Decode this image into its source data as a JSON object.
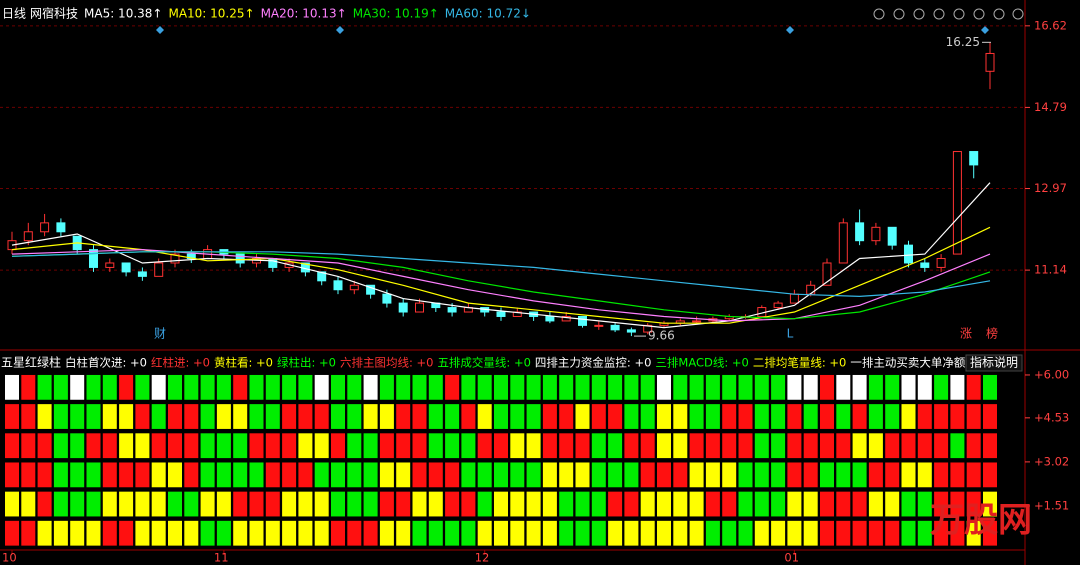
{
  "header": {
    "period": "日线",
    "stock": "网宿科技"
  },
  "chart_data": [
    {
      "type": "candlestick",
      "ohlc": [
        [
          11.6,
          12.0,
          11.5,
          11.8
        ],
        [
          11.8,
          12.2,
          11.7,
          12.0
        ],
        [
          12.0,
          12.4,
          11.9,
          12.2
        ],
        [
          12.2,
          12.3,
          11.9,
          12.0
        ],
        [
          11.9,
          11.9,
          11.5,
          11.6
        ],
        [
          11.6,
          11.7,
          11.1,
          11.2
        ],
        [
          11.2,
          11.4,
          11.1,
          11.3
        ],
        [
          11.3,
          11.3,
          11.0,
          11.1
        ],
        [
          11.1,
          11.2,
          10.9,
          11.0
        ],
        [
          11.0,
          11.4,
          11.0,
          11.3
        ],
        [
          11.3,
          11.6,
          11.2,
          11.5
        ],
        [
          11.5,
          11.6,
          11.3,
          11.4
        ],
        [
          11.4,
          11.7,
          11.4,
          11.6
        ],
        [
          11.6,
          11.6,
          11.4,
          11.5
        ],
        [
          11.5,
          11.5,
          11.2,
          11.3
        ],
        [
          11.3,
          11.5,
          11.2,
          11.4
        ],
        [
          11.4,
          11.4,
          11.1,
          11.2
        ],
        [
          11.2,
          11.4,
          11.1,
          11.3
        ],
        [
          11.3,
          11.3,
          11.0,
          11.1
        ],
        [
          11.1,
          11.1,
          10.8,
          10.9
        ],
        [
          10.9,
          11.0,
          10.6,
          10.7
        ],
        [
          10.7,
          10.9,
          10.6,
          10.8
        ],
        [
          10.8,
          10.8,
          10.5,
          10.6
        ],
        [
          10.6,
          10.7,
          10.3,
          10.4
        ],
        [
          10.4,
          10.5,
          10.1,
          10.2
        ],
        [
          10.2,
          10.5,
          10.2,
          10.4
        ],
        [
          10.4,
          10.4,
          10.2,
          10.3
        ],
        [
          10.3,
          10.4,
          10.1,
          10.2
        ],
        [
          10.2,
          10.4,
          10.2,
          10.3
        ],
        [
          10.3,
          10.3,
          10.1,
          10.2
        ],
        [
          10.2,
          10.3,
          10.0,
          10.1
        ],
        [
          10.1,
          10.3,
          10.1,
          10.2
        ],
        [
          10.2,
          10.2,
          10.0,
          10.1
        ],
        [
          10.1,
          10.2,
          9.95,
          10.0
        ],
        [
          10.0,
          10.2,
          10.0,
          10.1
        ],
        [
          10.1,
          10.1,
          9.85,
          9.9
        ],
        [
          9.9,
          10.0,
          9.8,
          9.9
        ],
        [
          9.9,
          9.95,
          9.75,
          9.8
        ],
        [
          9.8,
          9.85,
          9.66,
          9.75
        ],
        [
          9.75,
          9.95,
          9.7,
          9.9
        ],
        [
          9.9,
          10.0,
          9.85,
          9.95
        ],
        [
          9.95,
          10.05,
          9.9,
          10.0
        ],
        [
          10.0,
          10.1,
          9.95,
          10.0
        ],
        [
          10.0,
          10.1,
          9.95,
          10.05
        ],
        [
          10.05,
          10.15,
          10.0,
          10.1
        ],
        [
          10.1,
          10.15,
          10.05,
          10.1
        ],
        [
          10.1,
          10.35,
          10.1,
          10.3
        ],
        [
          10.3,
          10.45,
          10.25,
          10.4
        ],
        [
          10.4,
          10.7,
          10.4,
          10.6
        ],
        [
          10.6,
          10.9,
          10.55,
          10.8
        ],
        [
          10.8,
          11.4,
          10.8,
          11.3
        ],
        [
          11.3,
          12.3,
          11.3,
          12.2
        ],
        [
          12.2,
          12.5,
          11.7,
          11.8
        ],
        [
          11.8,
          12.2,
          11.7,
          12.1
        ],
        [
          12.1,
          12.1,
          11.6,
          11.7
        ],
        [
          11.7,
          11.8,
          11.2,
          11.3
        ],
        [
          11.3,
          11.4,
          11.1,
          11.2
        ],
        [
          11.2,
          11.5,
          11.1,
          11.4
        ],
        [
          11.5,
          13.8,
          11.5,
          13.8
        ],
        [
          13.8,
          13.8,
          13.2,
          13.5
        ],
        [
          15.6,
          16.25,
          15.2,
          16.0
        ]
      ],
      "up_color": "#ff3232",
      "down_color": "#54ffff",
      "ylim": [
        9.46,
        17.02
      ],
      "yticks": [
        11.14,
        12.97,
        14.79,
        16.62
      ],
      "grid": true,
      "series": [
        {
          "name": "MA5",
          "legend_text": "MA5: 10.38↑",
          "color": "#ffffff",
          "x": [
            0,
            4,
            8,
            12,
            16,
            20,
            24,
            28,
            32,
            36,
            40,
            44,
            48,
            52,
            56,
            60
          ],
          "values": [
            11.7,
            11.95,
            11.3,
            11.4,
            11.35,
            11.0,
            10.5,
            10.3,
            10.15,
            10.0,
            9.85,
            10.0,
            10.35,
            11.4,
            11.5,
            13.1
          ]
        },
        {
          "name": "MA10",
          "legend_text": "MA10: 10.25↑",
          "color": "#ffff00",
          "x": [
            0,
            4,
            8,
            12,
            16,
            20,
            24,
            28,
            32,
            36,
            40,
            44,
            48,
            52,
            56,
            60
          ],
          "values": [
            11.6,
            11.75,
            11.6,
            11.35,
            11.4,
            11.15,
            10.8,
            10.4,
            10.25,
            10.1,
            9.95,
            9.95,
            10.2,
            10.8,
            11.4,
            12.1
          ]
        },
        {
          "name": "MA20",
          "legend_text": "MA20: 10.13↑",
          "color": "#ff80ff",
          "x": [
            0,
            4,
            8,
            12,
            16,
            20,
            24,
            28,
            32,
            36,
            40,
            44,
            48,
            52,
            56,
            60
          ],
          "values": [
            11.5,
            11.55,
            11.6,
            11.5,
            11.4,
            11.3,
            11.0,
            10.7,
            10.45,
            10.25,
            10.1,
            10.0,
            10.05,
            10.35,
            10.9,
            11.5
          ]
        },
        {
          "name": "MA30",
          "legend_text": "MA30: 10.19↑",
          "color": "#00e600",
          "x": [
            0,
            4,
            8,
            12,
            16,
            20,
            24,
            28,
            32,
            36,
            40,
            44,
            48,
            52,
            56,
            60
          ],
          "values": [
            11.45,
            11.5,
            11.55,
            11.55,
            11.5,
            11.4,
            11.2,
            10.9,
            10.65,
            10.45,
            10.25,
            10.1,
            10.05,
            10.2,
            10.6,
            11.1
          ]
        },
        {
          "name": "MA60",
          "legend_text": "MA60: 10.72↓",
          "color": "#35b8e6",
          "x": [
            0,
            4,
            8,
            12,
            16,
            20,
            24,
            28,
            32,
            36,
            40,
            44,
            48,
            52,
            56,
            60
          ],
          "values": [
            11.45,
            11.5,
            11.55,
            11.55,
            11.55,
            11.5,
            11.4,
            11.3,
            11.2,
            11.05,
            10.9,
            10.75,
            10.6,
            10.55,
            10.65,
            10.9
          ]
        }
      ],
      "markers": [
        "财",
        "L",
        "涨",
        "榜"
      ]
    },
    {
      "type": "indicator",
      "title": "五星红绿柱",
      "legend": [
        {
          "text": "白柱首次进: +0",
          "color": "#ffffff"
        },
        {
          "text": "红柱进: +0",
          "color": "#ff3232"
        },
        {
          "text": "黄柱看: +0",
          "color": "#ffff00"
        },
        {
          "text": "绿柱出: +0",
          "color": "#00ff00"
        },
        {
          "text": "六排主图均线: +0",
          "color": "#ff3232"
        },
        {
          "text": "五排成交量线: +0",
          "color": "#00ff00"
        },
        {
          "text": "四排主力资金监控: +0",
          "color": "#ffffff"
        },
        {
          "text": "三排MACD线: +0",
          "color": "#00ff00"
        },
        {
          "text": "二排均笔量线: +0",
          "color": "#ffff00"
        },
        {
          "text": "一排主动买卖大单净额: +",
          "color": "#ffffff"
        }
      ],
      "button": "指标说明",
      "categories": [
        "10",
        null,
        null,
        null,
        null,
        null,
        null,
        null,
        null,
        null,
        null,
        null,
        null,
        "11",
        null,
        null,
        null,
        null,
        null,
        null,
        null,
        null,
        null,
        null,
        null,
        null,
        null,
        null,
        null,
        "12",
        null,
        null,
        null,
        null,
        null,
        null,
        null,
        null,
        null,
        null,
        null,
        null,
        null,
        null,
        null,
        null,
        null,
        null,
        "01",
        null,
        null,
        null,
        null,
        null,
        null,
        null,
        null,
        null,
        null,
        null,
        null
      ],
      "ylim": [
        0,
        6.17
      ],
      "yticks": [
        {
          "value": 1.51,
          "label": "+1.51"
        },
        {
          "value": 3.02,
          "label": "+3.02"
        },
        {
          "value": 4.53,
          "label": "+4.53"
        },
        {
          "value": 6.0,
          "label": "+6.00"
        }
      ],
      "rows": [
        "WRGGWGGRGWGGGGRGGGGWGGWGGGGRGGGGGGGGGGGGWGGGGGGGWWRWWGGWWGWRG",
        "RRYGGGYYRGRRGYYGGRRRGGYYRRGGRYGGGRRYRRGGYYGGRRGGRGRGRGGYRRRRR",
        "RRRGGRRYYRRRGGGRRRYYRGGRRRGGGRRYYRRRGGRRYYRRRRGGRRRRYYRRRRGRR",
        "RRRGGGRRRYYRGGGGRRRGGGGYYRRRGGGGGYYYGGGRRRYYYGGGRRGGGRRYYRRRR",
        "YYRGGGYYYYGGYYRRRYYYGGGRRYYRRGYYYYGGGRRYYYYRRGGGYYRRRYYGGRRRY",
        "RRYYYYRRYYYYGGYYYYYYRRRYYGGGGYYYYYGGGYYYYYYGGGYYYYRRRRRGGRRYR"
      ],
      "cell_colors": {
        "R": "#ff1010",
        "G": "#00ee00",
        "Y": "#ffff00",
        "W": "#ffffff"
      }
    }
  ],
  "watermark": "万股网"
}
